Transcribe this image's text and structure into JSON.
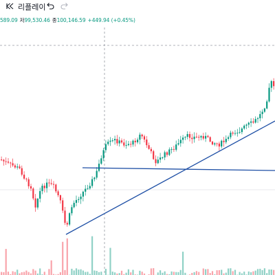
{
  "toolbar": {
    "replay_label": "리플레이",
    "undo_icon": "undo-icon",
    "redo_icon": "redo-icon",
    "replay_icon": "replay-rewind-icon"
  },
  "ohlc": {
    "high_value": "589.09",
    "low_label": "저",
    "low_value": "99,530.46",
    "close_label": "종",
    "close_value": "100,146.59",
    "change": "+449.94 (+0.45%)",
    "color_up": "#089981"
  },
  "colors": {
    "up": "#089981",
    "down": "#f23645",
    "drawn_line": "#1e4fa5",
    "dashed": "#9598a1"
  },
  "drawings": [
    "horizontal-line",
    "ascending-trendline"
  ]
}
